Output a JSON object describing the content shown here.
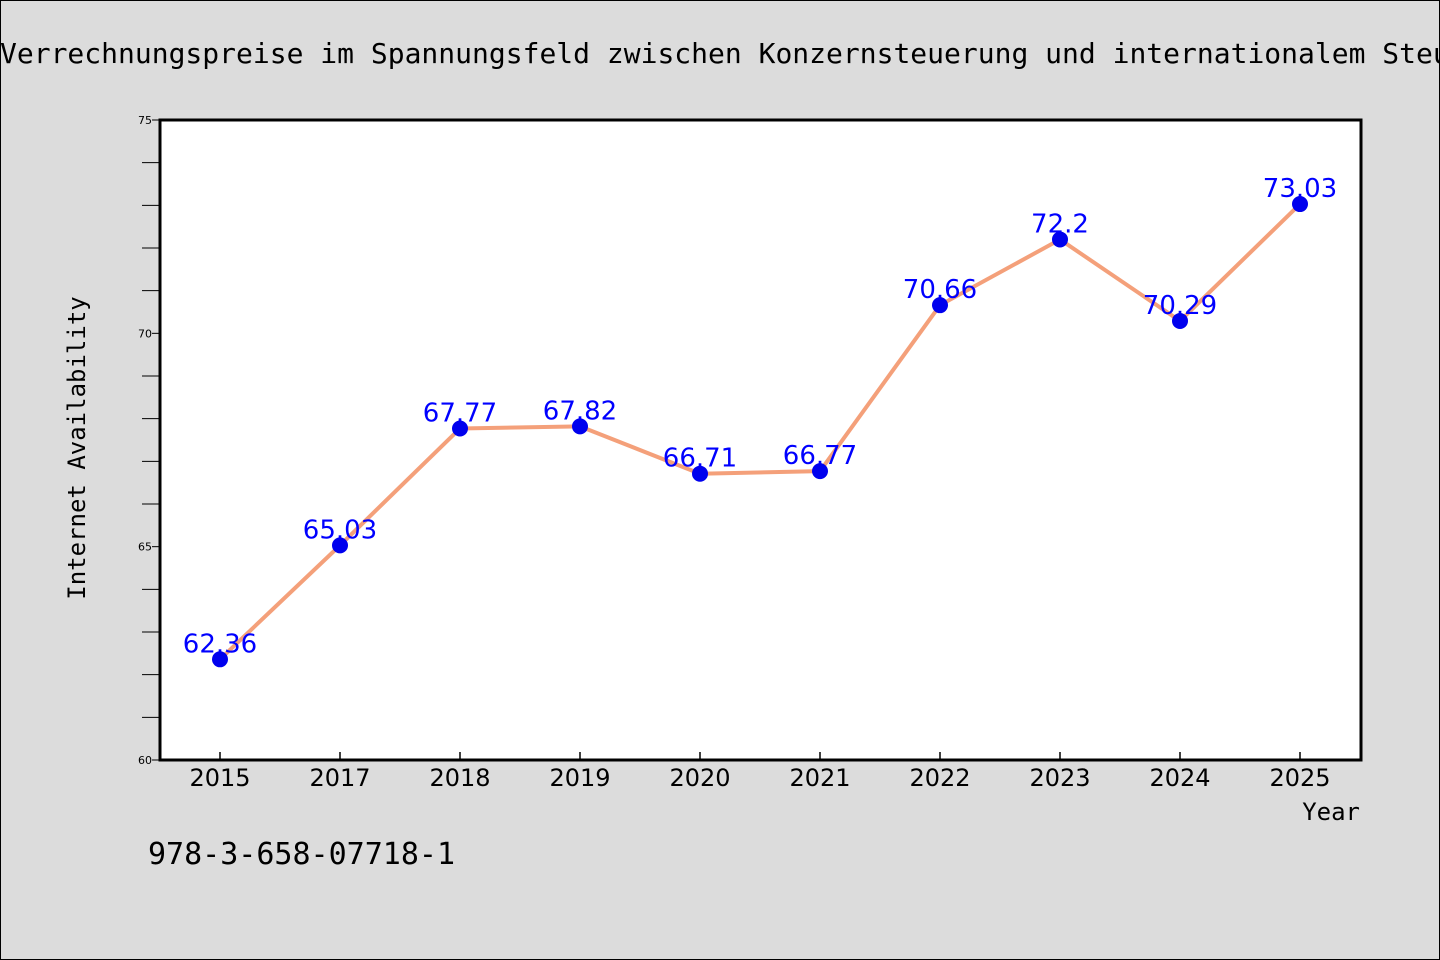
{
  "chart_data": {
    "type": "line",
    "title": "Verrechnungspreise im Spannungsfeld zwischen Konzernsteuerung und internationalem Steuerrecht",
    "xlabel": "Year",
    "ylabel": "Internet Availability",
    "categories": [
      "2015",
      "2017",
      "2018",
      "2019",
      "2020",
      "2021",
      "2022",
      "2023",
      "2024",
      "2025"
    ],
    "series": [
      {
        "values": [
          62.36,
          65.03,
          67.77,
          67.82,
          66.71,
          66.77,
          70.66,
          72.2,
          70.29,
          73.03
        ],
        "data_labels": [
          "62.36",
          "65.03",
          "67.77",
          "67.82",
          "66.71",
          "66.77",
          "70.66",
          "72.2",
          "70.29",
          "73.03"
        ],
        "line_color": "#f4a07a",
        "marker_color": "#0000ee",
        "label_color": "#0000ff"
      }
    ],
    "ylim": [
      60,
      75
    ],
    "yticks": [
      "60",
      "65",
      "70",
      "75"
    ],
    "grid": false,
    "legend": "none"
  },
  "footer": {
    "isbn": "978-3-658-07718-1"
  },
  "colors": {
    "background": "#dcdcdc",
    "plot_background": "#ffffff"
  }
}
